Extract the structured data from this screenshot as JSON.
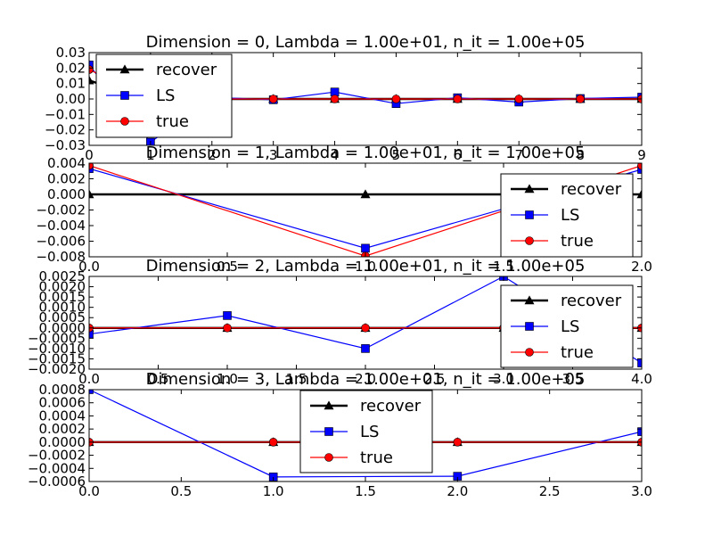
{
  "chart_data": [
    {
      "type": "line",
      "title": "Dimension = 0, Lambda = 1.00e+01, n_it = 1.00e+05",
      "xlim": [
        0,
        9
      ],
      "ylim": [
        -0.03,
        0.03
      ],
      "xticks": [
        "0",
        "1",
        "2",
        "3",
        "4",
        "5",
        "6",
        "7",
        "8",
        "9"
      ],
      "yticks": [
        "0.03",
        "0.02",
        "0.01",
        "0.00",
        "−0.01",
        "−0.02",
        "−0.03"
      ],
      "legend": "upper-left",
      "series": [
        {
          "name": "recover",
          "color": "#000000",
          "marker": "triangle",
          "x": [
            0,
            0.15,
            1,
            2,
            3,
            4,
            5,
            6,
            7,
            8,
            9
          ],
          "y": [
            0.012,
            0.01,
            0,
            0,
            0,
            0,
            0,
            0,
            0,
            0,
            0
          ]
        },
        {
          "name": "LS",
          "color": "#0000ff",
          "marker": "square",
          "x": [
            0,
            1,
            2,
            3,
            4,
            5,
            6,
            7,
            8,
            9
          ],
          "y": [
            0.022,
            -0.028,
            0.001,
            -0.0005,
            0.0045,
            -0.003,
            0.0008,
            -0.002,
            0.0003,
            0.0012
          ]
        },
        {
          "name": "true",
          "color": "#ff0000",
          "marker": "circle",
          "x": [
            0,
            1,
            2,
            3,
            4,
            5,
            6,
            7,
            8,
            9
          ],
          "y": [
            0.019,
            0,
            0,
            0,
            0,
            0,
            0,
            0,
            0,
            0
          ]
        }
      ]
    },
    {
      "type": "line",
      "title": "Dimension = 1, Lambda = 1.00e+01, n_it = 1.00e+05",
      "xlim": [
        0,
        2
      ],
      "ylim": [
        -0.008,
        0.004
      ],
      "xticks": [
        "0.0",
        "0.5",
        "1.0",
        "1.5",
        "2.0"
      ],
      "yticks": [
        "0.004",
        "0.002",
        "0.000",
        "−0.002",
        "−0.004",
        "−0.006",
        "−0.008"
      ],
      "legend": "lower-right",
      "series": [
        {
          "name": "recover",
          "color": "#000000",
          "marker": "triangle",
          "x": [
            0,
            1,
            2
          ],
          "y": [
            0,
            0,
            0
          ]
        },
        {
          "name": "LS",
          "color": "#0000ff",
          "marker": "square",
          "x": [
            0,
            1,
            2
          ],
          "y": [
            0.0033,
            -0.0069,
            0.0032
          ]
        },
        {
          "name": "true",
          "color": "#ff0000",
          "marker": "circle",
          "x": [
            0,
            1,
            2
          ],
          "y": [
            0.0037,
            -0.0079,
            0.0037
          ]
        }
      ]
    },
    {
      "type": "line",
      "title": "Dimension = 2, Lambda = 1.00e+01, n_it = 1.00e+05",
      "xlim": [
        0,
        4
      ],
      "ylim": [
        -0.002,
        0.0025
      ],
      "xticks": [
        "0.0",
        "0.5",
        "1.0",
        "1.5",
        "2.0",
        "2.5",
        "3.0",
        "3.5",
        "4.0"
      ],
      "yticks": [
        "0.0025",
        "0.0020",
        "0.0015",
        "0.0010",
        "0.0005",
        "0.0000",
        "−0.0005",
        "−0.0010",
        "−0.0015",
        "−0.0020"
      ],
      "legend": "lower-right",
      "series": [
        {
          "name": "recover",
          "color": "#000000",
          "marker": "triangle",
          "x": [
            0,
            1,
            2,
            3,
            4
          ],
          "y": [
            0,
            0,
            0,
            0,
            0
          ]
        },
        {
          "name": "LS",
          "color": "#0000ff",
          "marker": "square",
          "x": [
            0,
            1,
            2,
            3,
            4
          ],
          "y": [
            -0.0003,
            0.0006,
            -0.001,
            0.0025,
            -0.0017
          ]
        },
        {
          "name": "true",
          "color": "#ff0000",
          "marker": "circle",
          "x": [
            0,
            1,
            2,
            3,
            4
          ],
          "y": [
            0,
            0,
            0,
            0,
            0
          ]
        }
      ]
    },
    {
      "type": "line",
      "title": "Dimension = 3, Lambda = 1.00e+01, n_it = 1.00e+05",
      "xlim": [
        0,
        3
      ],
      "ylim": [
        -0.0006,
        0.0008
      ],
      "xticks": [
        "0.0",
        "0.5",
        "1.0",
        "1.5",
        "2.0",
        "2.5",
        "3.0"
      ],
      "yticks": [
        "0.0008",
        "0.0006",
        "0.0004",
        "0.0002",
        "0.0000",
        "−0.0002",
        "−0.0004",
        "−0.0006"
      ],
      "legend": "upper-center",
      "series": [
        {
          "name": "recover",
          "color": "#000000",
          "marker": "triangle",
          "x": [
            0,
            1,
            2,
            3
          ],
          "y": [
            0,
            0,
            0,
            0
          ]
        },
        {
          "name": "LS",
          "color": "#0000ff",
          "marker": "square",
          "x": [
            0,
            1,
            2,
            3
          ],
          "y": [
            0.0008,
            -0.00053,
            -0.00052,
            0.00016
          ]
        },
        {
          "name": "true",
          "color": "#ff0000",
          "marker": "circle",
          "x": [
            0,
            1,
            2,
            3
          ],
          "y": [
            0,
            0,
            0,
            0
          ]
        }
      ]
    }
  ]
}
